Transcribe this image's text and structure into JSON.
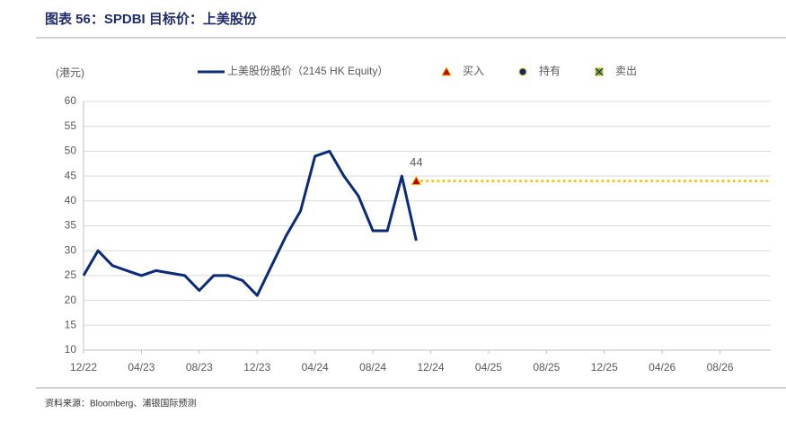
{
  "chart_data": {
    "type": "line",
    "title": "图表 56：SPDBI 目标价：上美股份",
    "y_label": "(港元)",
    "source": "资料来源：Bloomberg、浦银国际预测",
    "x": [
      "12/22",
      "01/23",
      "02/23",
      "03/23",
      "04/23",
      "05/23",
      "06/23",
      "07/23",
      "08/23",
      "09/23",
      "10/23",
      "11/23",
      "12/23",
      "01/24",
      "02/24",
      "03/24",
      "04/24",
      "05/24",
      "06/24",
      "07/24",
      "08/24",
      "09/24",
      "10/24",
      "11/24"
    ],
    "series": [
      {
        "name": "上美股份股价（2145 HK Equity）",
        "color": "#0b2a78",
        "values": [
          25,
          30,
          27,
          26,
          25,
          26,
          25.5,
          25,
          22,
          25,
          25,
          24,
          21,
          27,
          33,
          38,
          49,
          50,
          45,
          41,
          34,
          34,
          45,
          32
        ]
      }
    ],
    "ratings": [
      {
        "name": "买入",
        "color": "#c00000"
      },
      {
        "name": "持有",
        "color": "#0b2a78"
      },
      {
        "name": "卖出",
        "color": "#70ad47"
      }
    ],
    "targets": [
      {
        "rating": "买入",
        "x": "11/24",
        "value": 44
      }
    ],
    "target_line_color": "#f5c400",
    "xlim": [
      "12/22",
      "12/26"
    ],
    "xticks": [
      "12/22",
      "04/23",
      "08/23",
      "12/23",
      "04/24",
      "08/24",
      "12/24",
      "04/25",
      "08/25",
      "12/25",
      "04/26",
      "08/26"
    ],
    "ylim": [
      10,
      60
    ],
    "yticks": [
      10,
      15,
      20,
      25,
      30,
      35,
      40,
      45,
      50,
      55,
      60
    ],
    "grid": true
  }
}
